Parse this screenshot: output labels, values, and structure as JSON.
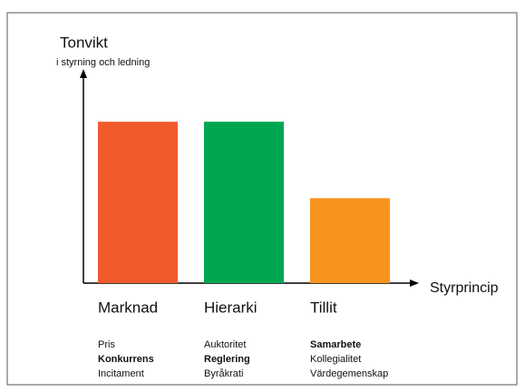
{
  "chart_data": {
    "type": "bar",
    "y_label": "Tonvikt",
    "y_sublabel": "i styrning och ledning",
    "x_label": "Styrprincip",
    "categories": [
      "Marknad",
      "Hierarki",
      "Tillit"
    ],
    "values": [
      7.6,
      7.6,
      4.0
    ],
    "colors": [
      "#f15a2b",
      "#00a650",
      "#f7941e"
    ],
    "keywords": [
      [
        "Pris",
        "Konkurrens",
        "Incitament"
      ],
      [
        "Auktoritet",
        "Reglering",
        "Byråkrati"
      ],
      [
        "Samarbete",
        "Kollegialitet",
        "Värdegemenskap"
      ]
    ],
    "bold_keyword": [
      1,
      1,
      0
    ],
    "ylim": [
      0,
      10
    ]
  }
}
